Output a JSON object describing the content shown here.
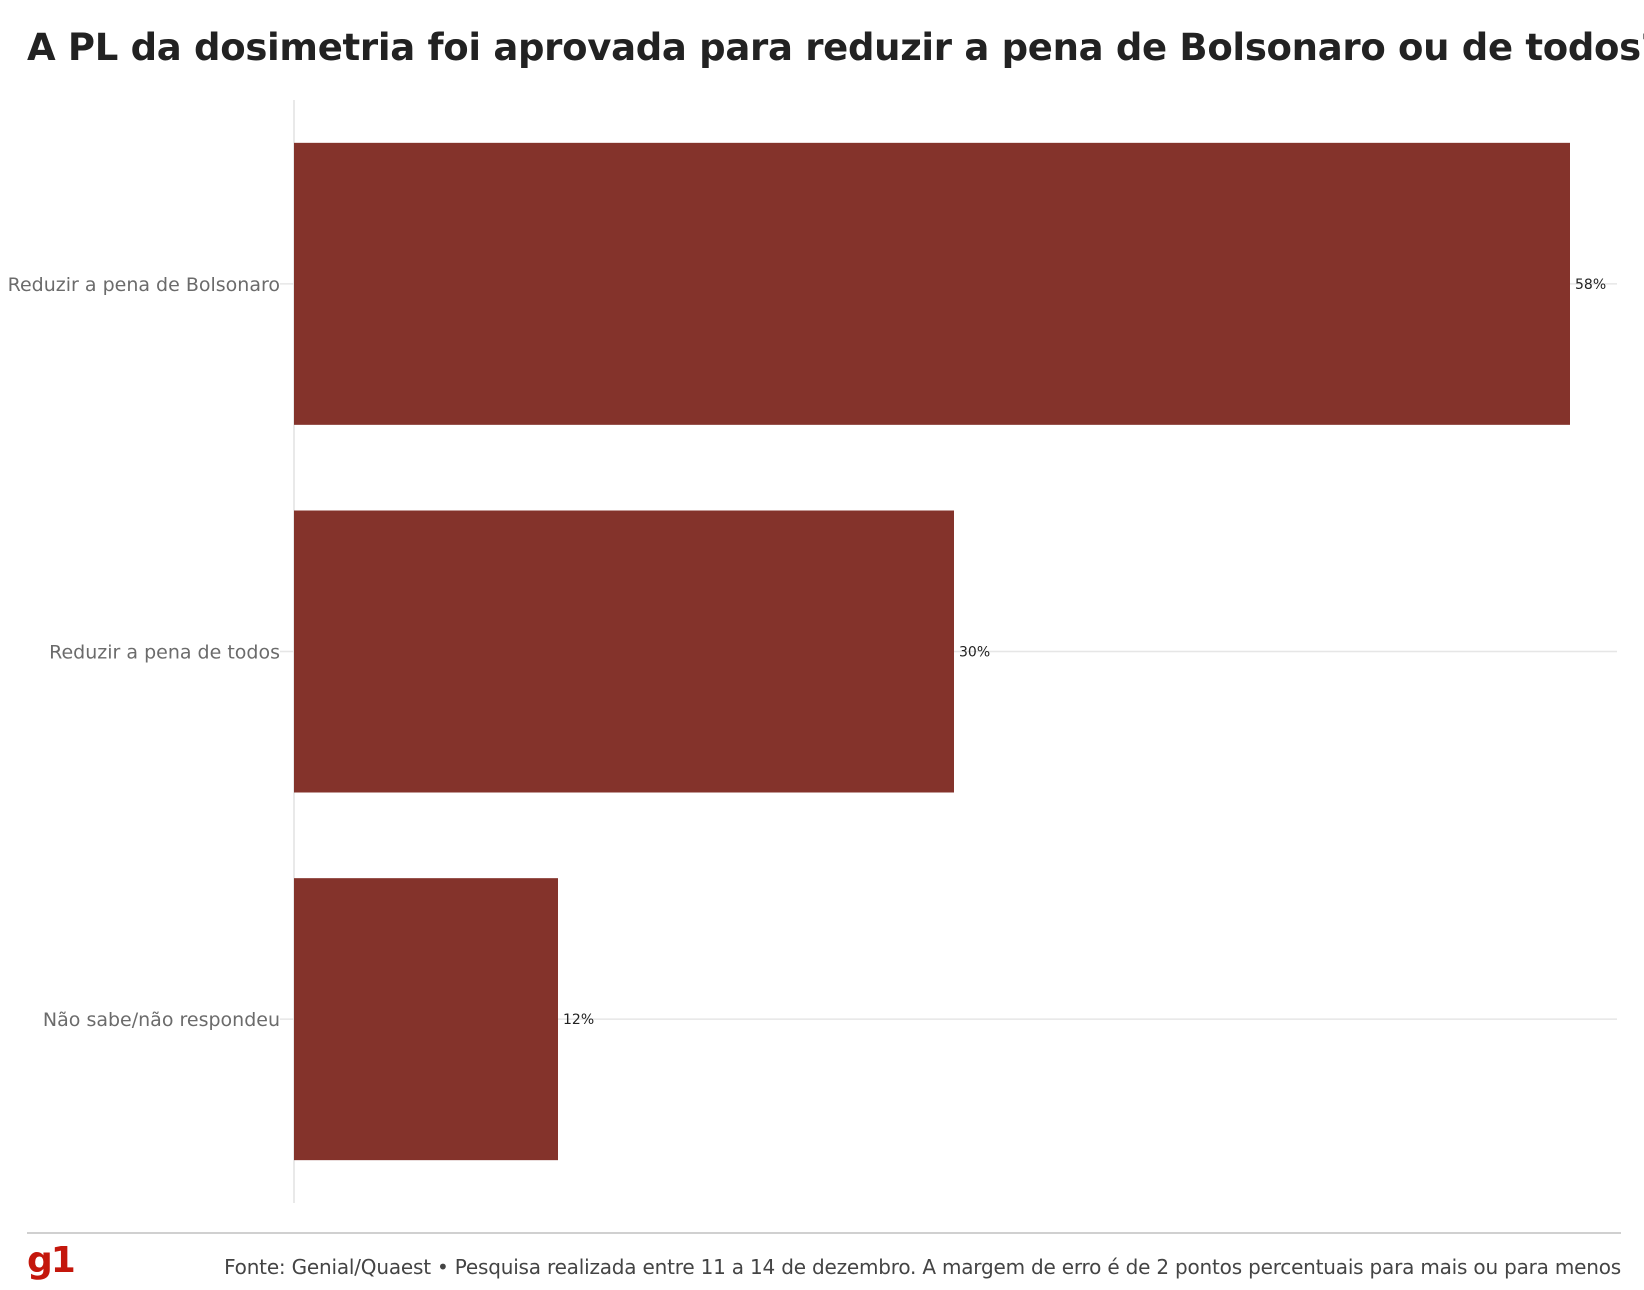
{
  "title": "A PL da dosimetria foi aprovada para reduzir a pena de Bolsonaro ou de todos?",
  "chart_data": {
    "type": "bar",
    "orientation": "horizontal",
    "title": "A PL da dosimetria foi aprovada para reduzir a pena de Bolsonaro ou de todos?",
    "categories": [
      "Reduzir a pena de Bolsonaro",
      "Reduzir a pena de todos",
      "Não sabe/não respondeu"
    ],
    "values": [
      58,
      30,
      12
    ],
    "value_labels": [
      "58%",
      "30%",
      "12%"
    ],
    "unit": "%",
    "xlim": [
      0,
      60
    ],
    "bar_color": "#84332b",
    "grid": true
  },
  "footer": {
    "logo": "g1",
    "logo_color": "#c4170c",
    "source": "Fonte: Genial/Quaest • Pesquisa realizada entre 11 a 14 de dezembro. A margem de erro é de 2 pontos percentuais para mais ou para menos"
  }
}
